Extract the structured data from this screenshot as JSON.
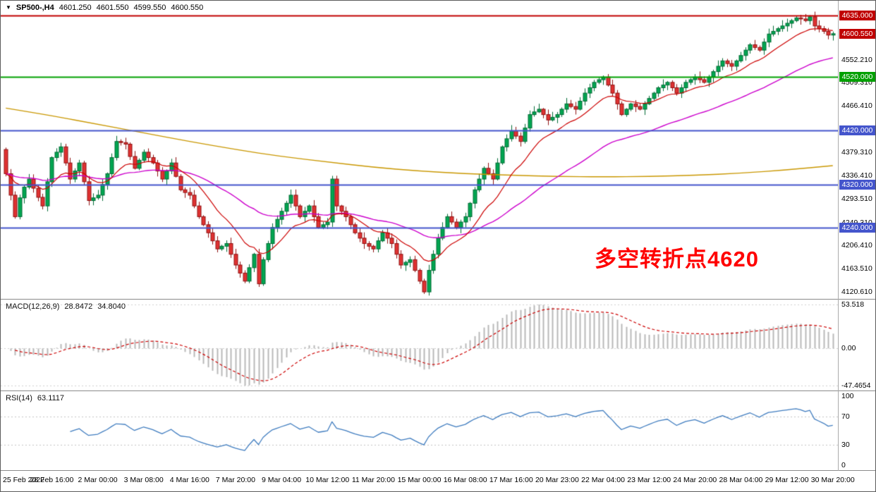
{
  "title_bar": {
    "symbol_tf": "SP500-,H4",
    "open": "4601.250",
    "high": "4601.550",
    "low": "4599.550",
    "close": "4600.550"
  },
  "chart_data": {
    "type": "candlestick",
    "title": "SP500- H4 candlestick chart with MACD and RSI",
    "timeframe": "H4",
    "bars_per_label": 10,
    "x_labels": [
      "25 Feb 2022",
      "28 Feb 16:00",
      "2 Mar 00:00",
      "3 Mar 08:00",
      "4 Mar 16:00",
      "7 Mar 20:00",
      "9 Mar 04:00",
      "10 Mar 12:00",
      "11 Mar 20:00",
      "15 Mar 00:00",
      "16 Mar 08:00",
      "17 Mar 16:00",
      "20 Mar 23:00",
      "22 Mar 04:00",
      "23 Mar 12:00",
      "24 Mar 20:00",
      "28 Mar 04:00",
      "29 Mar 12:00",
      "30 Mar 20:00"
    ],
    "open_first": 4385,
    "closes": [
      4340,
      4300,
      4260,
      4295,
      4315,
      4330,
      4313,
      4296,
      4280,
      4325,
      4370,
      4380,
      4390,
      4360,
      4330,
      4345,
      4360,
      4325,
      4290,
      4295,
      4300,
      4320,
      4340,
      4370,
      4400,
      4398,
      4395,
      4372,
      4350,
      4365,
      4380,
      4370,
      4360,
      4345,
      4330,
      4345,
      4360,
      4335,
      4310,
      4305,
      4300,
      4280,
      4260,
      4245,
      4230,
      4215,
      4200,
      4205,
      4210,
      4190,
      4170,
      4155,
      4140,
      4165,
      4190,
      4135,
      4180,
      4210,
      4240,
      4255,
      4270,
      4285,
      4300,
      4280,
      4260,
      4270,
      4280,
      4260,
      4240,
      4245,
      4250,
      4330,
      4280,
      4270,
      4260,
      4245,
      4230,
      4220,
      4210,
      4205,
      4200,
      4215,
      4230,
      4220,
      4210,
      4190,
      4170,
      4175,
      4180,
      4160,
      4140,
      4120,
      4160,
      4190,
      4220,
      4240,
      4260,
      4250,
      4240,
      4250,
      4260,
      4285,
      4310,
      4330,
      4350,
      4340,
      4330,
      4360,
      4390,
      4405,
      4420,
      4410,
      4400,
      4425,
      4450,
      4455,
      4460,
      4450,
      4440,
      4445,
      4450,
      4460,
      4470,
      4465,
      4460,
      4475,
      4490,
      4500,
      4510,
      4515,
      4520,
      4505,
      4490,
      4470,
      4450,
      4460,
      4470,
      4465,
      4460,
      4470,
      4480,
      4490,
      4500,
      4505,
      4510,
      4500,
      4490,
      4500,
      4510,
      4515,
      4520,
      4515,
      4510,
      4520,
      4530,
      4540,
      4550,
      4545,
      4540,
      4550,
      4560,
      4570,
      4580,
      4575,
      4570,
      4585,
      4600,
      4605,
      4610,
      4615,
      4620,
      4625,
      4630,
      4628,
      4625,
      4632,
      4615,
      4610,
      4605,
      4598,
      4600.55
    ],
    "price_axis": {
      "min": 4107,
      "max": 4662,
      "ticks": [
        {
          "price": 4635.0,
          "label": "4635.000",
          "kind": "level-red"
        },
        {
          "price": 4600.55,
          "label": "4600.550",
          "kind": "current"
        },
        {
          "price": 4552.21,
          "label": "4552.210",
          "kind": "tick"
        },
        {
          "price": 4520.0,
          "label": "4520.000",
          "kind": "level-green"
        },
        {
          "price": 4509.31,
          "label": "4509.310",
          "kind": "tick"
        },
        {
          "price": 4466.41,
          "label": "4466.410",
          "kind": "tick"
        },
        {
          "price": 4420.0,
          "label": "4420.000",
          "kind": "level-blue"
        },
        {
          "price": 4379.31,
          "label": "4379.310",
          "kind": "tick"
        },
        {
          "price": 4336.41,
          "label": "4336.410",
          "kind": "tick"
        },
        {
          "price": 4320.0,
          "label": "4320.000",
          "kind": "level-blue"
        },
        {
          "price": 4293.51,
          "label": "4293.510",
          "kind": "tick"
        },
        {
          "price": 4249.31,
          "label": "4249.310",
          "kind": "tick"
        },
        {
          "price": 4240.0,
          "label": "4240.000",
          "kind": "level-blue"
        },
        {
          "price": 4206.41,
          "label": "4206.410",
          "kind": "tick"
        },
        {
          "price": 4163.51,
          "label": "4163.510",
          "kind": "tick"
        },
        {
          "price": 4120.61,
          "label": "4120.610",
          "kind": "tick"
        }
      ]
    },
    "hlines": [
      {
        "price": 4635.0,
        "color": "#c00000",
        "width": 2
      },
      {
        "price": 4520.0,
        "color": "#00a000",
        "width": 2
      },
      {
        "price": 4420.0,
        "color": "#4455cc",
        "width": 2
      },
      {
        "price": 4320.0,
        "color": "#4455cc",
        "width": 2
      },
      {
        "price": 4240.0,
        "color": "#4455cc",
        "width": 2
      }
    ],
    "candle_colors": {
      "up_fill": "#00a651",
      "up_border": "#006b34",
      "down_fill": "#e03232",
      "down_border": "#8f1010"
    },
    "moving_averages": {
      "fast": {
        "type": "ema",
        "period": 13,
        "color": "#cc0000"
      },
      "mid": {
        "type": "ema",
        "period": 45,
        "color": "#cc00cc"
      },
      "slow": {
        "type": "anchors",
        "color": "#c99700",
        "points": [
          [
            0,
            4462
          ],
          [
            10,
            4448
          ],
          [
            20,
            4432
          ],
          [
            30,
            4416
          ],
          [
            40,
            4400
          ],
          [
            50,
            4385
          ],
          [
            60,
            4372
          ],
          [
            70,
            4362
          ],
          [
            80,
            4352
          ],
          [
            90,
            4345
          ],
          [
            100,
            4340
          ],
          [
            110,
            4337
          ],
          [
            120,
            4335
          ],
          [
            130,
            4334
          ],
          [
            140,
            4335
          ],
          [
            150,
            4337
          ],
          [
            160,
            4341
          ],
          [
            170,
            4347
          ],
          [
            180,
            4355
          ]
        ]
      }
    },
    "indicators": {
      "macd": {
        "label": "MACD(12,26,9)",
        "macd_value": "28.8472",
        "signal_value": "34.8040",
        "fast": 12,
        "slow": 26,
        "signal": 9,
        "axis_labels": [
          "53.518",
          "0.00",
          "-47.4654"
        ],
        "histogram_color": "#b8b8b8",
        "signal_color": "#cc0000"
      },
      "rsi": {
        "label": "RSI(14)",
        "value": "63.1117",
        "period": 14,
        "axis_labels": [
          "100",
          "70",
          "30",
          "0"
        ],
        "levels": [
          70,
          30
        ],
        "color": "#3f7cbf"
      }
    },
    "annotation": {
      "text": "多空转折点4620",
      "color": "#ff0000"
    }
  }
}
